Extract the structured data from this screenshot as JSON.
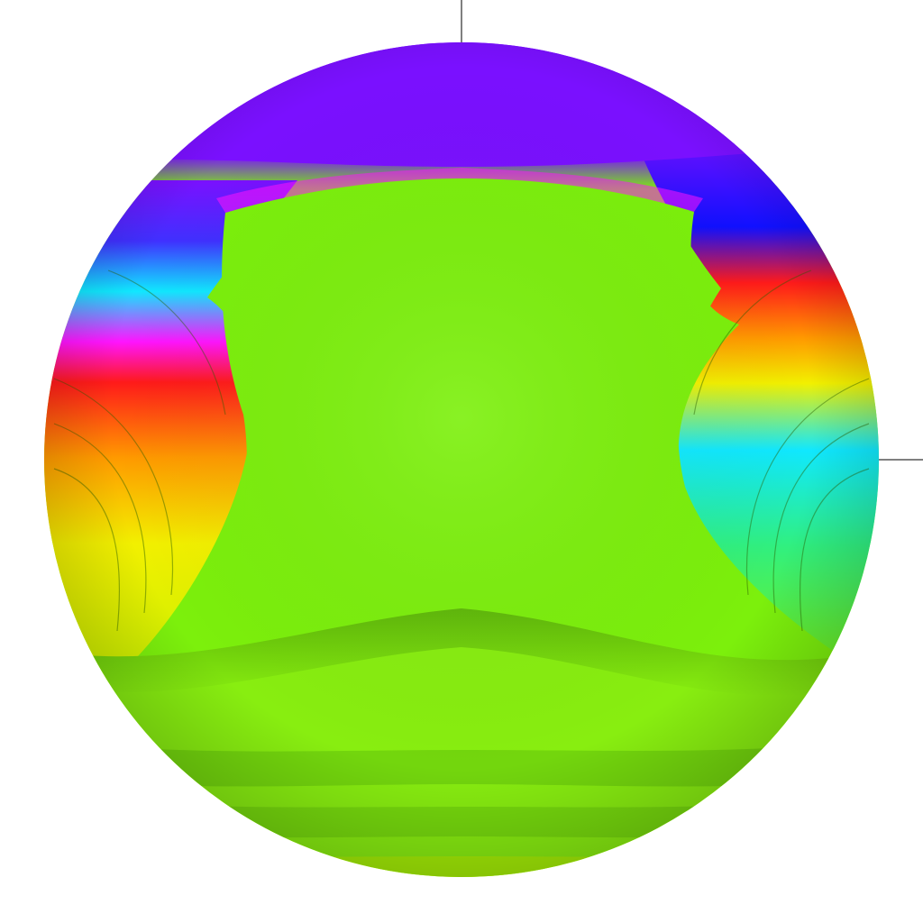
{
  "image": {
    "kind": "domain-coloring phase portrait on a sphere",
    "palette": {
      "background": "#ffffff",
      "axis_line": "#000000",
      "dominant_green": "#7cf00c",
      "dark_green": "#4fae08",
      "yellow": "#f2f000",
      "orange": "#ff9a00",
      "red": "#ff1a1a",
      "magenta": "#ff14ff",
      "violet": "#7a10ff",
      "blue": "#1010ff",
      "cyan": "#10e8ff"
    }
  }
}
